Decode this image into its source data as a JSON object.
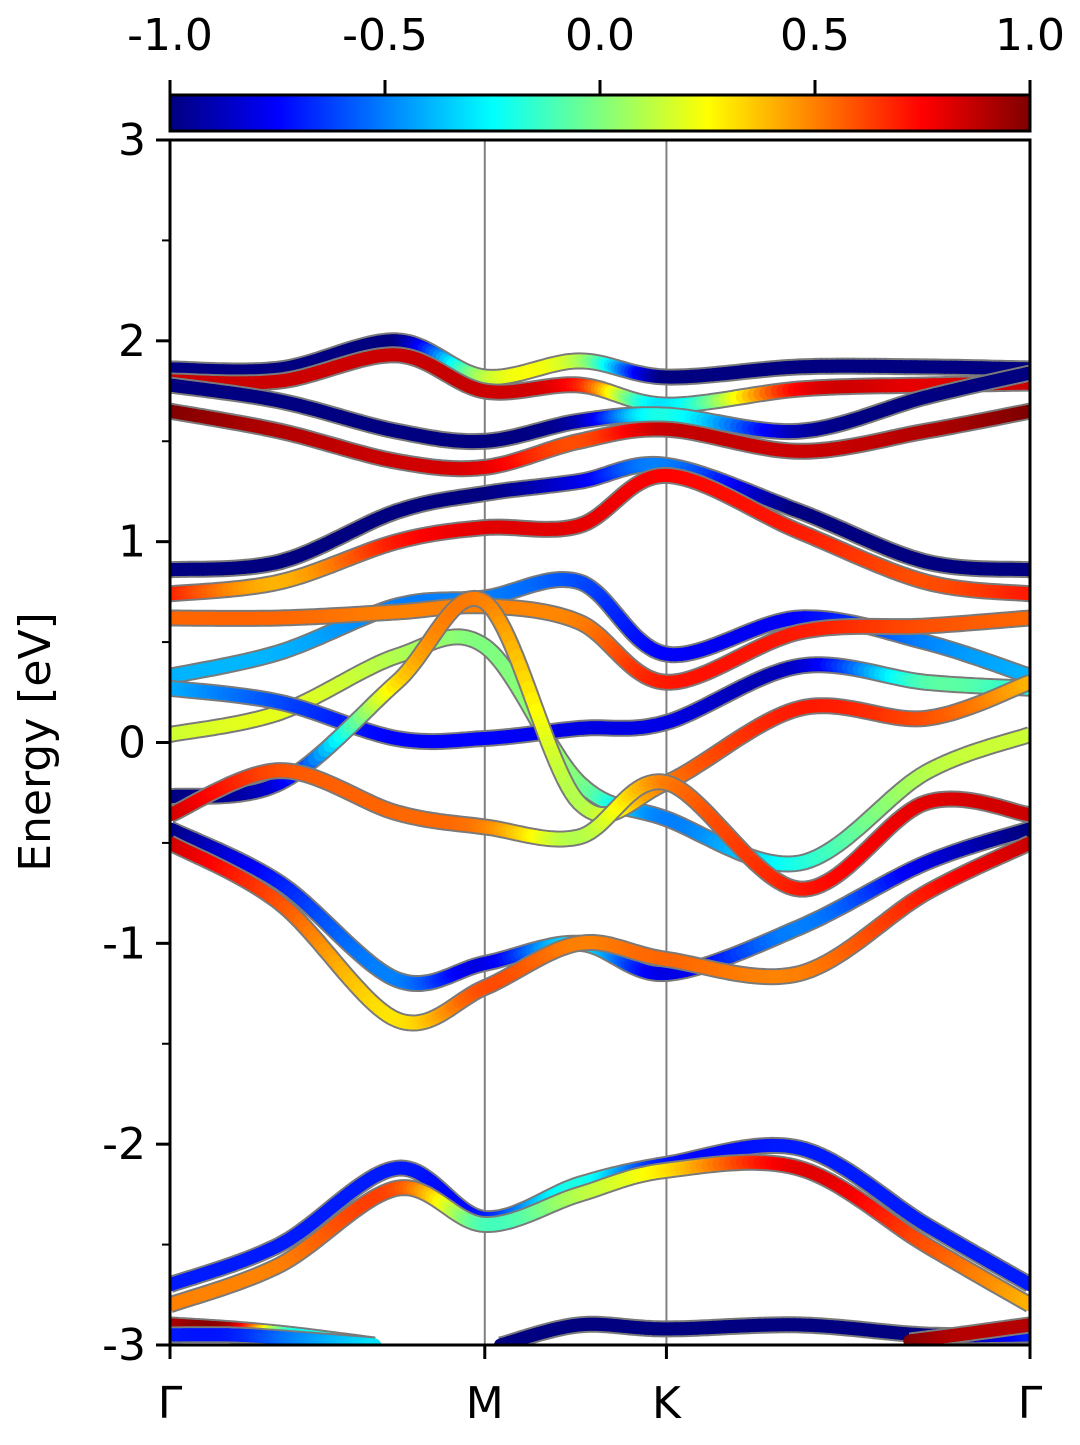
{
  "chart_data": {
    "type": "line",
    "title": "",
    "ylabel": "Energy [eV]",
    "xlabel": "",
    "ylim": [
      -3,
      3
    ],
    "yticks": [
      -3,
      -2,
      -1,
      0,
      1,
      2,
      3
    ],
    "ytick_labels": [
      "-3",
      "-2",
      "-1",
      "0",
      "1",
      "2",
      "3"
    ],
    "x_kpoints": [
      {
        "label": "Γ",
        "x": 0.0
      },
      {
        "label": "M",
        "x": 1.0
      },
      {
        "label": "K",
        "x": 1.577
      },
      {
        "label": "Γ",
        "x": 2.732
      }
    ],
    "colorbar": {
      "cmap": "jet",
      "range": [
        -1.0,
        1.0
      ],
      "ticks": [
        -1.0,
        -0.5,
        0.0,
        0.5,
        1.0
      ],
      "tick_labels": [
        "-1.0",
        "-0.5",
        "0.0",
        "0.5",
        "1.0"
      ]
    },
    "grid": false,
    "bands": [
      {
        "x": [
          0,
          0.35,
          0.72,
          1.0,
          1.3,
          1.577,
          2.0,
          2.4,
          2.732
        ],
        "y": [
          1.86,
          1.86,
          2.0,
          1.82,
          1.9,
          1.82,
          1.87,
          1.87,
          1.86
        ],
        "c": [
          -1,
          -1,
          -1,
          0.1,
          0.1,
          -1,
          -1,
          -1,
          -1
        ]
      },
      {
        "x": [
          0,
          0.35,
          0.72,
          1.0,
          1.3,
          1.577,
          2.0,
          2.4,
          2.732
        ],
        "y": [
          1.8,
          1.8,
          1.93,
          1.75,
          1.78,
          1.68,
          1.76,
          1.78,
          1.79
        ],
        "c": [
          0.85,
          0.85,
          0.85,
          0.85,
          0.7,
          -0.3,
          0.75,
          0.8,
          0.85
        ]
      },
      {
        "x": [
          0,
          0.35,
          0.72,
          1.0,
          1.3,
          1.577,
          2.0,
          2.4,
          2.732
        ],
        "y": [
          1.78,
          1.7,
          1.55,
          1.5,
          1.6,
          1.63,
          1.55,
          1.72,
          1.84
        ],
        "c": [
          -1,
          -1,
          -1,
          -1,
          -0.9,
          -0.2,
          -0.9,
          -1,
          -1
        ]
      },
      {
        "x": [
          0,
          0.35,
          0.72,
          1.0,
          1.3,
          1.577,
          2.0,
          2.4,
          2.732
        ],
        "y": [
          1.65,
          1.55,
          1.4,
          1.37,
          1.5,
          1.56,
          1.45,
          1.55,
          1.65
        ],
        "c": [
          1,
          0.9,
          0.85,
          0.8,
          0.6,
          0.85,
          0.85,
          0.9,
          1
        ]
      },
      {
        "x": [
          0,
          0.35,
          0.72,
          1.0,
          1.3,
          1.577,
          2.0,
          2.4,
          2.732
        ],
        "y": [
          0.86,
          0.9,
          1.15,
          1.24,
          1.3,
          1.38,
          1.15,
          0.9,
          0.86
        ],
        "c": [
          -1,
          -1,
          -1,
          -1,
          -0.8,
          -0.5,
          -1,
          -1,
          -1
        ]
      },
      {
        "x": [
          0,
          0.35,
          0.72,
          1.0,
          1.3,
          1.577,
          2.0,
          2.4,
          2.732
        ],
        "y": [
          0.74,
          0.8,
          1.0,
          1.07,
          1.08,
          1.33,
          1.05,
          0.8,
          0.74
        ],
        "c": [
          0.7,
          0.4,
          0.7,
          0.8,
          0.8,
          0.75,
          0.7,
          0.6,
          0.7
        ]
      },
      {
        "x": [
          0,
          0.35,
          0.72,
          1.0,
          1.3,
          1.577,
          2.0,
          2.4,
          2.732
        ],
        "y": [
          0.33,
          0.45,
          0.68,
          0.72,
          0.8,
          0.44,
          0.62,
          0.5,
          0.33
        ],
        "c": [
          -0.4,
          -0.4,
          -0.5,
          -0.5,
          -0.6,
          -0.75,
          -0.75,
          -0.5,
          -0.4
        ]
      },
      {
        "x": [
          0,
          0.35,
          0.72,
          1.0,
          1.3,
          1.577,
          2.0,
          2.4,
          2.732
        ],
        "y": [
          0.62,
          0.62,
          0.65,
          0.68,
          0.6,
          0.3,
          0.55,
          0.58,
          0.62
        ],
        "c": [
          0.55,
          0.55,
          0.5,
          0.5,
          0.5,
          0.7,
          0.7,
          0.6,
          0.55
        ]
      },
      {
        "x": [
          0,
          0.35,
          0.72,
          1.0,
          1.3,
          1.577,
          2.0,
          2.4,
          2.732
        ],
        "y": [
          0.04,
          0.15,
          0.43,
          0.48,
          -0.2,
          -0.38,
          -0.6,
          -0.15,
          0.04
        ],
        "c": [
          0.15,
          0.2,
          0.1,
          0.0,
          0.0,
          -0.5,
          -0.2,
          0.1,
          0.15
        ]
      },
      {
        "x": [
          0,
          0.35,
          0.72,
          1.0,
          1.3,
          1.577,
          2.0,
          2.4,
          2.732
        ],
        "y": [
          0.27,
          0.2,
          0.02,
          0.02,
          0.07,
          0.1,
          0.38,
          0.3,
          0.27
        ],
        "c": [
          -0.4,
          -0.6,
          -0.75,
          -0.75,
          -0.8,
          -0.8,
          -0.85,
          -0.1,
          -0.2
        ]
      },
      {
        "x": [
          0,
          0.35,
          0.72,
          1.0,
          1.3,
          1.577,
          2.0,
          2.4,
          2.732
        ],
        "y": [
          -0.27,
          -0.2,
          0.3,
          0.7,
          -0.3,
          -0.2,
          0.17,
          0.12,
          0.3
        ],
        "c": [
          -1,
          -0.8,
          0.3,
          0.5,
          0.1,
          0.5,
          0.7,
          0.6,
          0.4
        ]
      },
      {
        "x": [
          0,
          0.35,
          0.72,
          1.0,
          1.3,
          1.577,
          2.0,
          2.4,
          2.732
        ],
        "y": [
          -0.36,
          -0.14,
          -0.35,
          -0.42,
          -0.47,
          -0.2,
          -0.73,
          -0.3,
          -0.36
        ],
        "c": [
          0.85,
          0.6,
          0.55,
          0.5,
          0.1,
          0.5,
          0.7,
          0.8,
          0.85
        ]
      },
      {
        "x": [
          0,
          0.35,
          0.72,
          1.0,
          1.3,
          1.577,
          2.0,
          2.4,
          2.732
        ],
        "y": [
          -0.43,
          -0.7,
          -1.18,
          -1.1,
          -1.0,
          -1.15,
          -0.92,
          -0.6,
          -0.43
        ],
        "c": [
          -1,
          -0.7,
          -0.5,
          -0.8,
          -0.3,
          -0.8,
          -0.5,
          -0.8,
          -1
        ]
      },
      {
        "x": [
          0,
          0.35,
          0.72,
          1.0,
          1.3,
          1.577,
          2.0,
          2.4,
          2.732
        ],
        "y": [
          -0.5,
          -0.8,
          -1.38,
          -1.22,
          -1.0,
          -1.08,
          -1.15,
          -0.75,
          -0.5
        ],
        "c": [
          0.85,
          0.6,
          0.3,
          0.6,
          0.5,
          0.55,
          0.5,
          0.7,
          0.85
        ]
      },
      {
        "x": [
          0,
          0.35,
          0.72,
          1.0,
          1.3,
          1.577,
          2.0,
          2.4,
          2.732
        ],
        "y": [
          -2.7,
          -2.5,
          -2.12,
          -2.37,
          -2.2,
          -2.1,
          -2.02,
          -2.4,
          -2.7
        ],
        "c": [
          -0.7,
          -0.7,
          -0.7,
          -0.7,
          -0.2,
          -0.7,
          -0.7,
          -0.7,
          -0.7
        ]
      },
      {
        "x": [
          0,
          0.35,
          0.72,
          1.0,
          1.3,
          1.577,
          2.0,
          2.4,
          2.732
        ],
        "y": [
          -2.8,
          -2.6,
          -2.22,
          -2.4,
          -2.25,
          -2.13,
          -2.12,
          -2.5,
          -2.8
        ],
        "c": [
          0.5,
          0.5,
          0.6,
          -0.1,
          0.1,
          0.3,
          0.8,
          0.6,
          0.4
        ]
      },
      {
        "x": [
          1.05,
          1.3,
          1.577,
          2.0,
          2.4,
          2.732
        ],
        "y": [
          -3.0,
          -2.9,
          -2.92,
          -2.9,
          -2.95,
          -2.95
        ],
        "c": [
          -1,
          -1,
          -1,
          -1,
          -1,
          -0.7
        ]
      },
      {
        "x": [
          0,
          0.2,
          0.4,
          0.65
        ],
        "y": [
          -2.9,
          -2.92,
          -2.95,
          -3.0
        ],
        "c": [
          0.9,
          0.9,
          -0.2,
          0.1
        ]
      },
      {
        "x": [
          0,
          0.2,
          0.4,
          0.65
        ],
        "y": [
          -2.95,
          -2.95,
          -2.97,
          -3.0
        ],
        "c": [
          -0.7,
          -0.7,
          -0.5,
          -0.3
        ]
      },
      {
        "x": [
          2.35,
          2.5,
          2.732
        ],
        "y": [
          -2.98,
          -2.95,
          -2.9
        ],
        "c": [
          1,
          0.9,
          0.9
        ]
      }
    ]
  }
}
